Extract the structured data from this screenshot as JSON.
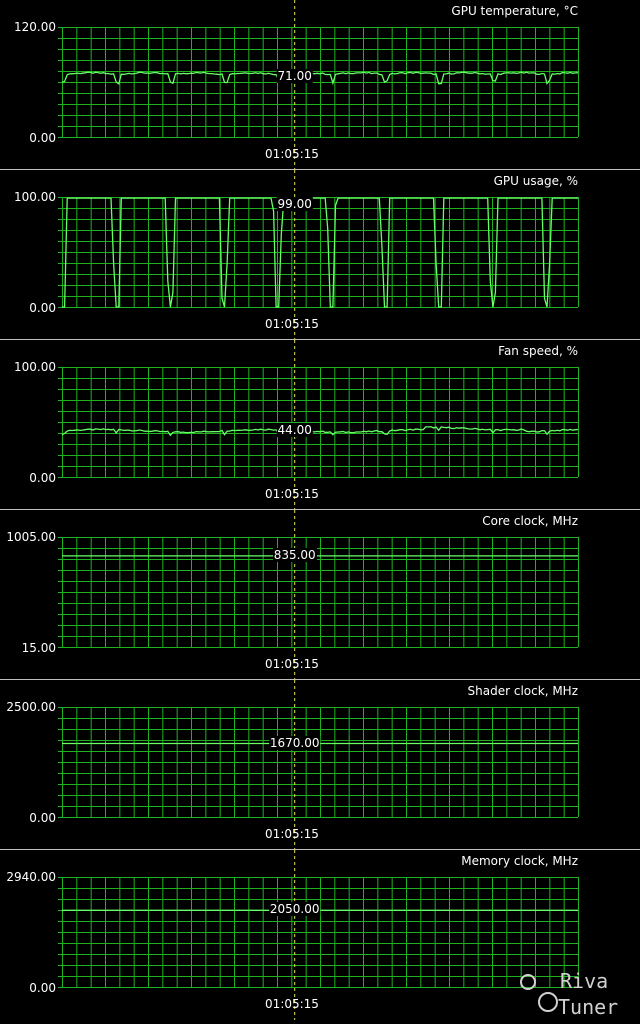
{
  "timestamp": "01:05:15",
  "colors": {
    "grid": "#1fb21f",
    "line": "#66ff66",
    "cursor": "#e6e64d",
    "background": "#000000",
    "separator": "#bfbfbf"
  },
  "panels": [
    {
      "title": "GPU temperature, °C",
      "y_max_label": "120.00",
      "y_min_label": "0.00",
      "current_label": "71.00",
      "y_range": [
        0,
        120
      ],
      "pattern": "temperature",
      "base": 66,
      "cursor_fraction": 0.45
    },
    {
      "title": "GPU usage, %",
      "y_max_label": "100.00",
      "y_min_label": "0.00",
      "current_label": "99.00",
      "y_range": [
        0,
        100
      ],
      "pattern": "usage",
      "base": 99,
      "cursor_fraction": 0.45
    },
    {
      "title": "Fan speed, %",
      "y_max_label": "100.00",
      "y_min_label": "0.00",
      "current_label": "44.00",
      "y_range": [
        0,
        100
      ],
      "pattern": "fan",
      "base": 42,
      "cursor_fraction": 0.45
    },
    {
      "title": "Core clock, MHz",
      "y_max_label": "1005.00",
      "y_min_label": "15.00",
      "current_label": "835.00",
      "y_range": [
        15,
        1005
      ],
      "pattern": "flat",
      "base": 835,
      "cursor_fraction": 0.45
    },
    {
      "title": "Shader clock, MHz",
      "y_max_label": "2500.00",
      "y_min_label": "0.00",
      "current_label": "1670.00",
      "y_range": [
        0,
        2500
      ],
      "pattern": "flat",
      "base": 1670,
      "cursor_fraction": 0.45
    },
    {
      "title": "Memory clock, MHz",
      "y_max_label": "2940.00",
      "y_min_label": "0.00",
      "current_label": "2050.00",
      "y_range": [
        0,
        2940
      ],
      "pattern": "flat",
      "base": 2050,
      "cursor_fraction": 0.45
    }
  ],
  "logo": {
    "line1": "Riva",
    "line2": "Tuner"
  }
}
